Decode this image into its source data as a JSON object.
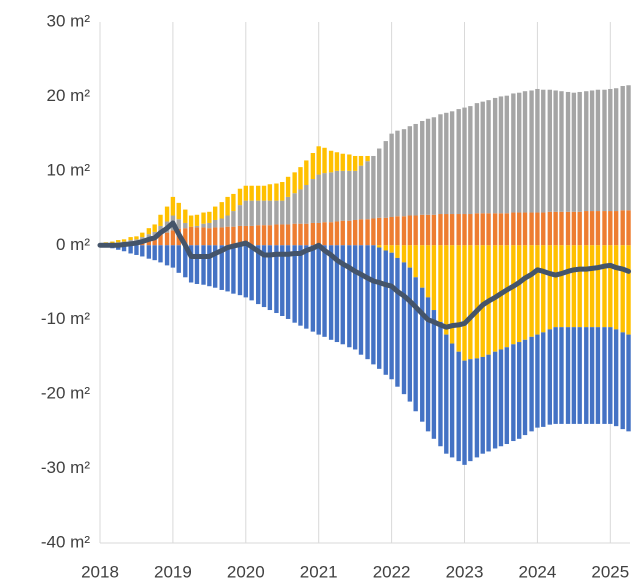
{
  "chart_data": {
    "type": "bar",
    "stacked": true,
    "x": [
      2018,
      2018.08,
      2018.17,
      2018.25,
      2018.33,
      2018.42,
      2018.5,
      2018.58,
      2018.67,
      2018.75,
      2018.83,
      2018.92,
      2019,
      2019.08,
      2019.17,
      2019.25,
      2019.33,
      2019.42,
      2019.5,
      2019.58,
      2019.67,
      2019.75,
      2019.83,
      2019.92,
      2020,
      2020.08,
      2020.17,
      2020.25,
      2020.33,
      2020.42,
      2020.5,
      2020.58,
      2020.67,
      2020.75,
      2020.83,
      2020.92,
      2021,
      2021.08,
      2021.17,
      2021.25,
      2021.33,
      2021.42,
      2021.5,
      2021.58,
      2021.67,
      2021.75,
      2021.83,
      2021.92,
      2022,
      2022.08,
      2022.17,
      2022.25,
      2022.33,
      2022.42,
      2022.5,
      2022.58,
      2022.67,
      2022.75,
      2022.83,
      2022.92,
      2023,
      2023.08,
      2023.17,
      2023.25,
      2023.33,
      2023.42,
      2023.5,
      2023.58,
      2023.67,
      2023.75,
      2023.83,
      2023.92,
      2024,
      2024.08,
      2024.17,
      2024.25,
      2024.33,
      2024.42,
      2024.5,
      2024.58,
      2024.67,
      2024.75,
      2024.83,
      2024.92,
      2025,
      2025.08,
      2025.17,
      2025.25
    ],
    "series": [
      {
        "color": "#4472c4",
        "values": [
          0,
          -0.2,
          -0.4,
          -0.6,
          -0.8,
          -1.1,
          -1.3,
          -1.5,
          -1.8,
          -2,
          -2.3,
          -2.7,
          -3,
          -3.7,
          -4.3,
          -5,
          -5.2,
          -5.3,
          -5.5,
          -5.7,
          -6,
          -6.2,
          -6.5,
          -6.7,
          -7,
          -7.4,
          -7.9,
          -8.3,
          -8.7,
          -9.1,
          -9.5,
          -9.9,
          -10.4,
          -10.8,
          -11.2,
          -11.6,
          -12,
          -12.3,
          -12.7,
          -13,
          -13.3,
          -13.7,
          -14,
          -14.7,
          -15.3,
          -16,
          -16.3,
          -16.7,
          -17,
          -17.3,
          -17.7,
          -18,
          -18,
          -18,
          -18,
          -17.3,
          -16.7,
          -16,
          -15.3,
          -14.7,
          -14,
          -13.7,
          -13.3,
          -13,
          -13,
          -13,
          -13,
          -13,
          -13,
          -13,
          -12.8,
          -12.7,
          -12.5,
          -12.7,
          -12.8,
          -13,
          -13,
          -13,
          -13,
          -13,
          -13,
          -13,
          -13,
          -13,
          -13,
          -13,
          -13,
          -13
        ]
      },
      {
        "color": "#ed7d31",
        "values": [
          0,
          0.1,
          0.2,
          0.3,
          0.4,
          0.5,
          0.6,
          0.8,
          1,
          1.2,
          1.5,
          1.7,
          2,
          2.2,
          2.3,
          2.5,
          2.4,
          2.4,
          2.3,
          2.4,
          2.4,
          2.5,
          2.5,
          2.6,
          2.6,
          2.6,
          2.7,
          2.7,
          2.7,
          2.8,
          2.8,
          2.8,
          2.9,
          2.9,
          2.9,
          3,
          3,
          3.1,
          3.1,
          3.2,
          3.3,
          3.3,
          3.4,
          3.5,
          3.5,
          3.6,
          3.7,
          3.7,
          3.8,
          3.9,
          3.9,
          4,
          4,
          4.1,
          4.1,
          4.1,
          4.2,
          4.2,
          4.2,
          4.2,
          4.2,
          4.2,
          4.3,
          4.3,
          4.3,
          4.3,
          4.3,
          4.3,
          4.4,
          4.4,
          4.4,
          4.4,
          4.4,
          4.4,
          4.5,
          4.5,
          4.5,
          4.5,
          4.5,
          4.5,
          4.6,
          4.6,
          4.6,
          4.6,
          4.6,
          4.6,
          4.7,
          4.7
        ]
      },
      {
        "color": "#a5a5a5",
        "values": [
          0.2,
          0.2,
          0.1,
          0.1,
          0.1,
          0.2,
          0.2,
          0.3,
          0.5,
          0.6,
          1.1,
          1.5,
          2,
          1.3,
          0.7,
          0,
          0.2,
          0.5,
          0.7,
          1,
          1.2,
          1.5,
          2.1,
          2.8,
          3.4,
          3.4,
          3.3,
          3.3,
          3.3,
          3.2,
          3.2,
          3.7,
          4.1,
          4.6,
          5.2,
          5.9,
          6.5,
          6.6,
          6.7,
          6.8,
          6.7,
          6.7,
          6.6,
          7.2,
          7.8,
          8.4,
          9.3,
          10.3,
          11.2,
          11.5,
          11.7,
          12,
          12.3,
          12.6,
          12.9,
          13.1,
          13.4,
          13.6,
          13.8,
          14.1,
          14.3,
          14.5,
          14.8,
          15,
          15.2,
          15.5,
          15.7,
          15.8,
          16,
          16.1,
          16.3,
          16.4,
          16.6,
          16.5,
          16.4,
          16.3,
          16.2,
          16.1,
          16,
          16.1,
          16.1,
          16.2,
          16.3,
          16.3,
          16.4,
          16.5,
          16.7,
          16.8
        ]
      },
      {
        "color": "#ffc000",
        "values": [
          0,
          0.1,
          0.2,
          0.3,
          0.3,
          0.4,
          0.4,
          0.6,
          0.8,
          1,
          1.5,
          2,
          2.5,
          2.2,
          1.8,
          1.5,
          1.5,
          1.5,
          1.5,
          1.8,
          2.2,
          2.5,
          2.3,
          2.2,
          2,
          2,
          2,
          2,
          2.2,
          2.3,
          2.5,
          2.7,
          2.8,
          3,
          3.3,
          3.5,
          3.8,
          3.4,
          2.9,
          2.5,
          2.3,
          2.2,
          2,
          1.3,
          0.7,
          0,
          -0.3,
          -0.7,
          -1,
          -1.7,
          -2.3,
          -3,
          -4.3,
          -5.7,
          -7,
          -8.7,
          -10.3,
          -12,
          -13.2,
          -14.3,
          -15.5,
          -15.3,
          -15.2,
          -15,
          -14.7,
          -14.3,
          -14,
          -13.7,
          -13.3,
          -13,
          -12.7,
          -12.3,
          -12,
          -11.7,
          -11.3,
          -11,
          -11,
          -11,
          -11,
          -11,
          -11,
          -11,
          -11,
          -11,
          -11,
          -11.3,
          -11.7,
          -12
        ]
      },
      {
        "type": "line",
        "color": "#44546a",
        "values": [
          0,
          0,
          0,
          0,
          0.1,
          0.2,
          0.3,
          0.5,
          0.8,
          1,
          1.7,
          2.3,
          3,
          1.5,
          0,
          -1.5,
          -1.5,
          -1.5,
          -1.5,
          -1.1,
          -0.7,
          -0.3,
          -0.1,
          0.1,
          0.3,
          -0.2,
          -0.8,
          -1.3,
          -1.3,
          -1.2,
          -1.2,
          -1.2,
          -1.1,
          -1.1,
          -0.7,
          -0.4,
          0,
          -0.7,
          -1.3,
          -2,
          -2.5,
          -3,
          -3.5,
          -3.9,
          -4.4,
          -4.8,
          -5,
          -5.3,
          -5.5,
          -6.2,
          -6.8,
          -7.5,
          -8.3,
          -9.2,
          -10,
          -10.3,
          -10.7,
          -11,
          -10.8,
          -10.7,
          -10.5,
          -9.7,
          -8.8,
          -8,
          -7.5,
          -7,
          -6.5,
          -6,
          -5.5,
          -5,
          -4.4,
          -3.9,
          -3.3,
          -3.5,
          -3.8,
          -4,
          -3.8,
          -3.5,
          -3.3,
          -3.2,
          -3.2,
          -3.1,
          -3,
          -2.8,
          -2.7,
          -3,
          -3.2,
          -3.5
        ]
      }
    ],
    "xlim": [
      2018,
      2025.27
    ],
    "xticks": [
      2018,
      2019,
      2020,
      2021,
      2022,
      2023,
      2024,
      2025
    ],
    "ylim": [
      -40,
      30
    ],
    "yticks": [
      {
        "value": -40,
        "label": "-40 m²"
      },
      {
        "value": -30,
        "label": "-30 m²"
      },
      {
        "value": -20,
        "label": "-20 m²"
      },
      {
        "value": -10,
        "label": "-10 m²"
      },
      {
        "value": 0,
        "label": "0 m²"
      },
      {
        "value": 10,
        "label": "10 m²"
      },
      {
        "value": 20,
        "label": "20 m²"
      },
      {
        "value": 30,
        "label": "30 m²"
      }
    ],
    "grid": true
  }
}
